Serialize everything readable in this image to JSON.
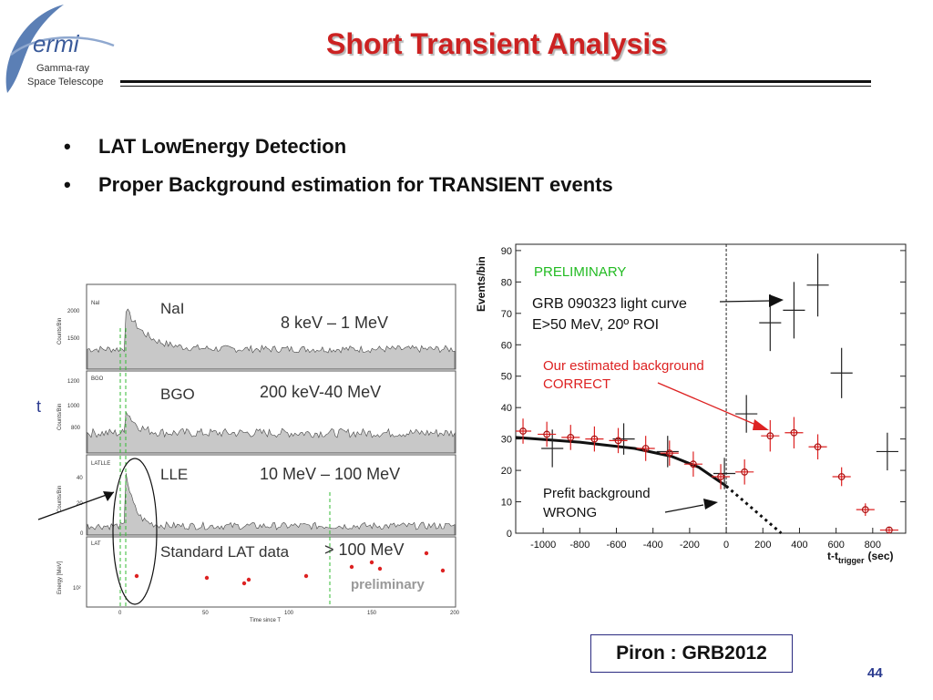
{
  "logo": {
    "name": "ermi",
    "line1": "Gamma-ray",
    "line2": "Space Telescope"
  },
  "slide": {
    "title": "Short Transient Analysis",
    "bullets": [
      "LAT LowEnergy Detection",
      "Proper Background estimation  for TRANSIENT events"
    ],
    "citation": "Piron : GRB2012",
    "page_number": "44"
  },
  "left_figure": {
    "panels": [
      {
        "detector": "NaI",
        "band": "8 keV – 1 MeV",
        "ylabel": "Counts/Bin",
        "yticks": [
          "2000",
          "1500"
        ]
      },
      {
        "detector": "BGO",
        "band": "200 keV-40 MeV",
        "ylabel": "Counts/Bin",
        "yticks": [
          "1200",
          "1000",
          "800"
        ]
      },
      {
        "detector": "LLE",
        "band": "10 MeV – 100 MeV",
        "ylabel": "Counts/Bin",
        "yticks": [
          "40",
          "20",
          "0"
        ],
        "tag": "LATLLE"
      },
      {
        "detector": "Standard LAT data",
        "band": "> 100 MeV",
        "ylabel": "Energy [MeV]",
        "yticks": [
          "10²"
        ],
        "tag": "LAT",
        "watermark": "preliminary"
      }
    ],
    "xticks": [
      "0",
      "50",
      "100",
      "150",
      "200"
    ],
    "xlabel": "Time since T",
    "left_char": "t"
  },
  "chart_data": {
    "type": "scatter",
    "title": "",
    "xlabel": "t-t_trigger (sec)",
    "ylabel": "Events/bin",
    "xlim": [
      -1150,
      980
    ],
    "ylim": [
      0,
      92
    ],
    "xticks": [
      -1000,
      -800,
      -600,
      -400,
      -200,
      0,
      200,
      400,
      600,
      800
    ],
    "yticks": [
      0,
      10,
      20,
      30,
      40,
      50,
      60,
      70,
      80,
      90
    ],
    "grid": false,
    "series": [
      {
        "name": "GRB 090323 light curve",
        "color": "#222222",
        "points": [
          {
            "x": -950,
            "y": 27,
            "xerr": 60,
            "yerr": 6
          },
          {
            "x": -560,
            "y": 30,
            "xerr": 60,
            "yerr": 5
          },
          {
            "x": -320,
            "y": 26,
            "xerr": 60,
            "yerr": 5
          },
          {
            "x": -10,
            "y": 19,
            "xerr": 60,
            "yerr": 5
          },
          {
            "x": 110,
            "y": 38,
            "xerr": 60,
            "yerr": 6
          },
          {
            "x": 240,
            "y": 67,
            "xerr": 60,
            "yerr": 9
          },
          {
            "x": 370,
            "y": 71,
            "xerr": 60,
            "yerr": 9
          },
          {
            "x": 500,
            "y": 79,
            "xerr": 60,
            "yerr": 10
          },
          {
            "x": 630,
            "y": 51,
            "xerr": 60,
            "yerr": 8
          },
          {
            "x": 880,
            "y": 26,
            "xerr": 60,
            "yerr": 6
          }
        ]
      },
      {
        "name": "Our estimated background",
        "color": "#dd2222",
        "points": [
          {
            "x": -1110,
            "y": 32.5,
            "xerr": 45,
            "yerr": 4
          },
          {
            "x": -980,
            "y": 31.5,
            "xerr": 50,
            "yerr": 4
          },
          {
            "x": -850,
            "y": 30.5,
            "xerr": 50,
            "yerr": 4
          },
          {
            "x": -720,
            "y": 30,
            "xerr": 50,
            "yerr": 4
          },
          {
            "x": -590,
            "y": 29.5,
            "xerr": 50,
            "yerr": 4
          },
          {
            "x": -440,
            "y": 27,
            "xerr": 50,
            "yerr": 4
          },
          {
            "x": -310,
            "y": 25.5,
            "xerr": 50,
            "yerr": 4
          },
          {
            "x": -180,
            "y": 22,
            "xerr": 50,
            "yerr": 4
          },
          {
            "x": -30,
            "y": 18,
            "xerr": 50,
            "yerr": 4
          },
          {
            "x": 100,
            "y": 19.5,
            "xerr": 50,
            "yerr": 4
          },
          {
            "x": 240,
            "y": 31,
            "xerr": 50,
            "yerr": 5
          },
          {
            "x": 370,
            "y": 32,
            "xerr": 50,
            "yerr": 5
          },
          {
            "x": 500,
            "y": 27.5,
            "xerr": 50,
            "yerr": 4
          },
          {
            "x": 630,
            "y": 18,
            "xerr": 50,
            "yerr": 3
          },
          {
            "x": 760,
            "y": 7.5,
            "xerr": 50,
            "yerr": 2
          },
          {
            "x": 890,
            "y": 1,
            "xerr": 50,
            "yerr": 1
          }
        ]
      }
    ],
    "prefit_curve": [
      [
        -1150,
        30.5
      ],
      [
        -800,
        29
      ],
      [
        -500,
        27
      ],
      [
        -300,
        24.5
      ],
      [
        -150,
        21
      ],
      [
        0,
        15
      ],
      [
        100,
        10
      ],
      [
        200,
        5
      ],
      [
        300,
        0
      ]
    ],
    "trigger_line_x": 0,
    "annotations": {
      "preliminary": "PRELIMINARY",
      "curve_line1": "GRB 090323 light curve",
      "curve_line2": "E>50 MeV, 20º ROI",
      "bkg_line1": "Our estimated background",
      "bkg_line2": "CORRECT",
      "prefit_line1": "Prefit background",
      "prefit_line2": "WRONG",
      "xlabel_main": "t-t",
      "xlabel_sub": "trigger",
      "xlabel_unit": "(sec)"
    },
    "colors": {
      "preliminary": "#22bb22",
      "background": "#dd2222",
      "curve": "#111111"
    }
  }
}
